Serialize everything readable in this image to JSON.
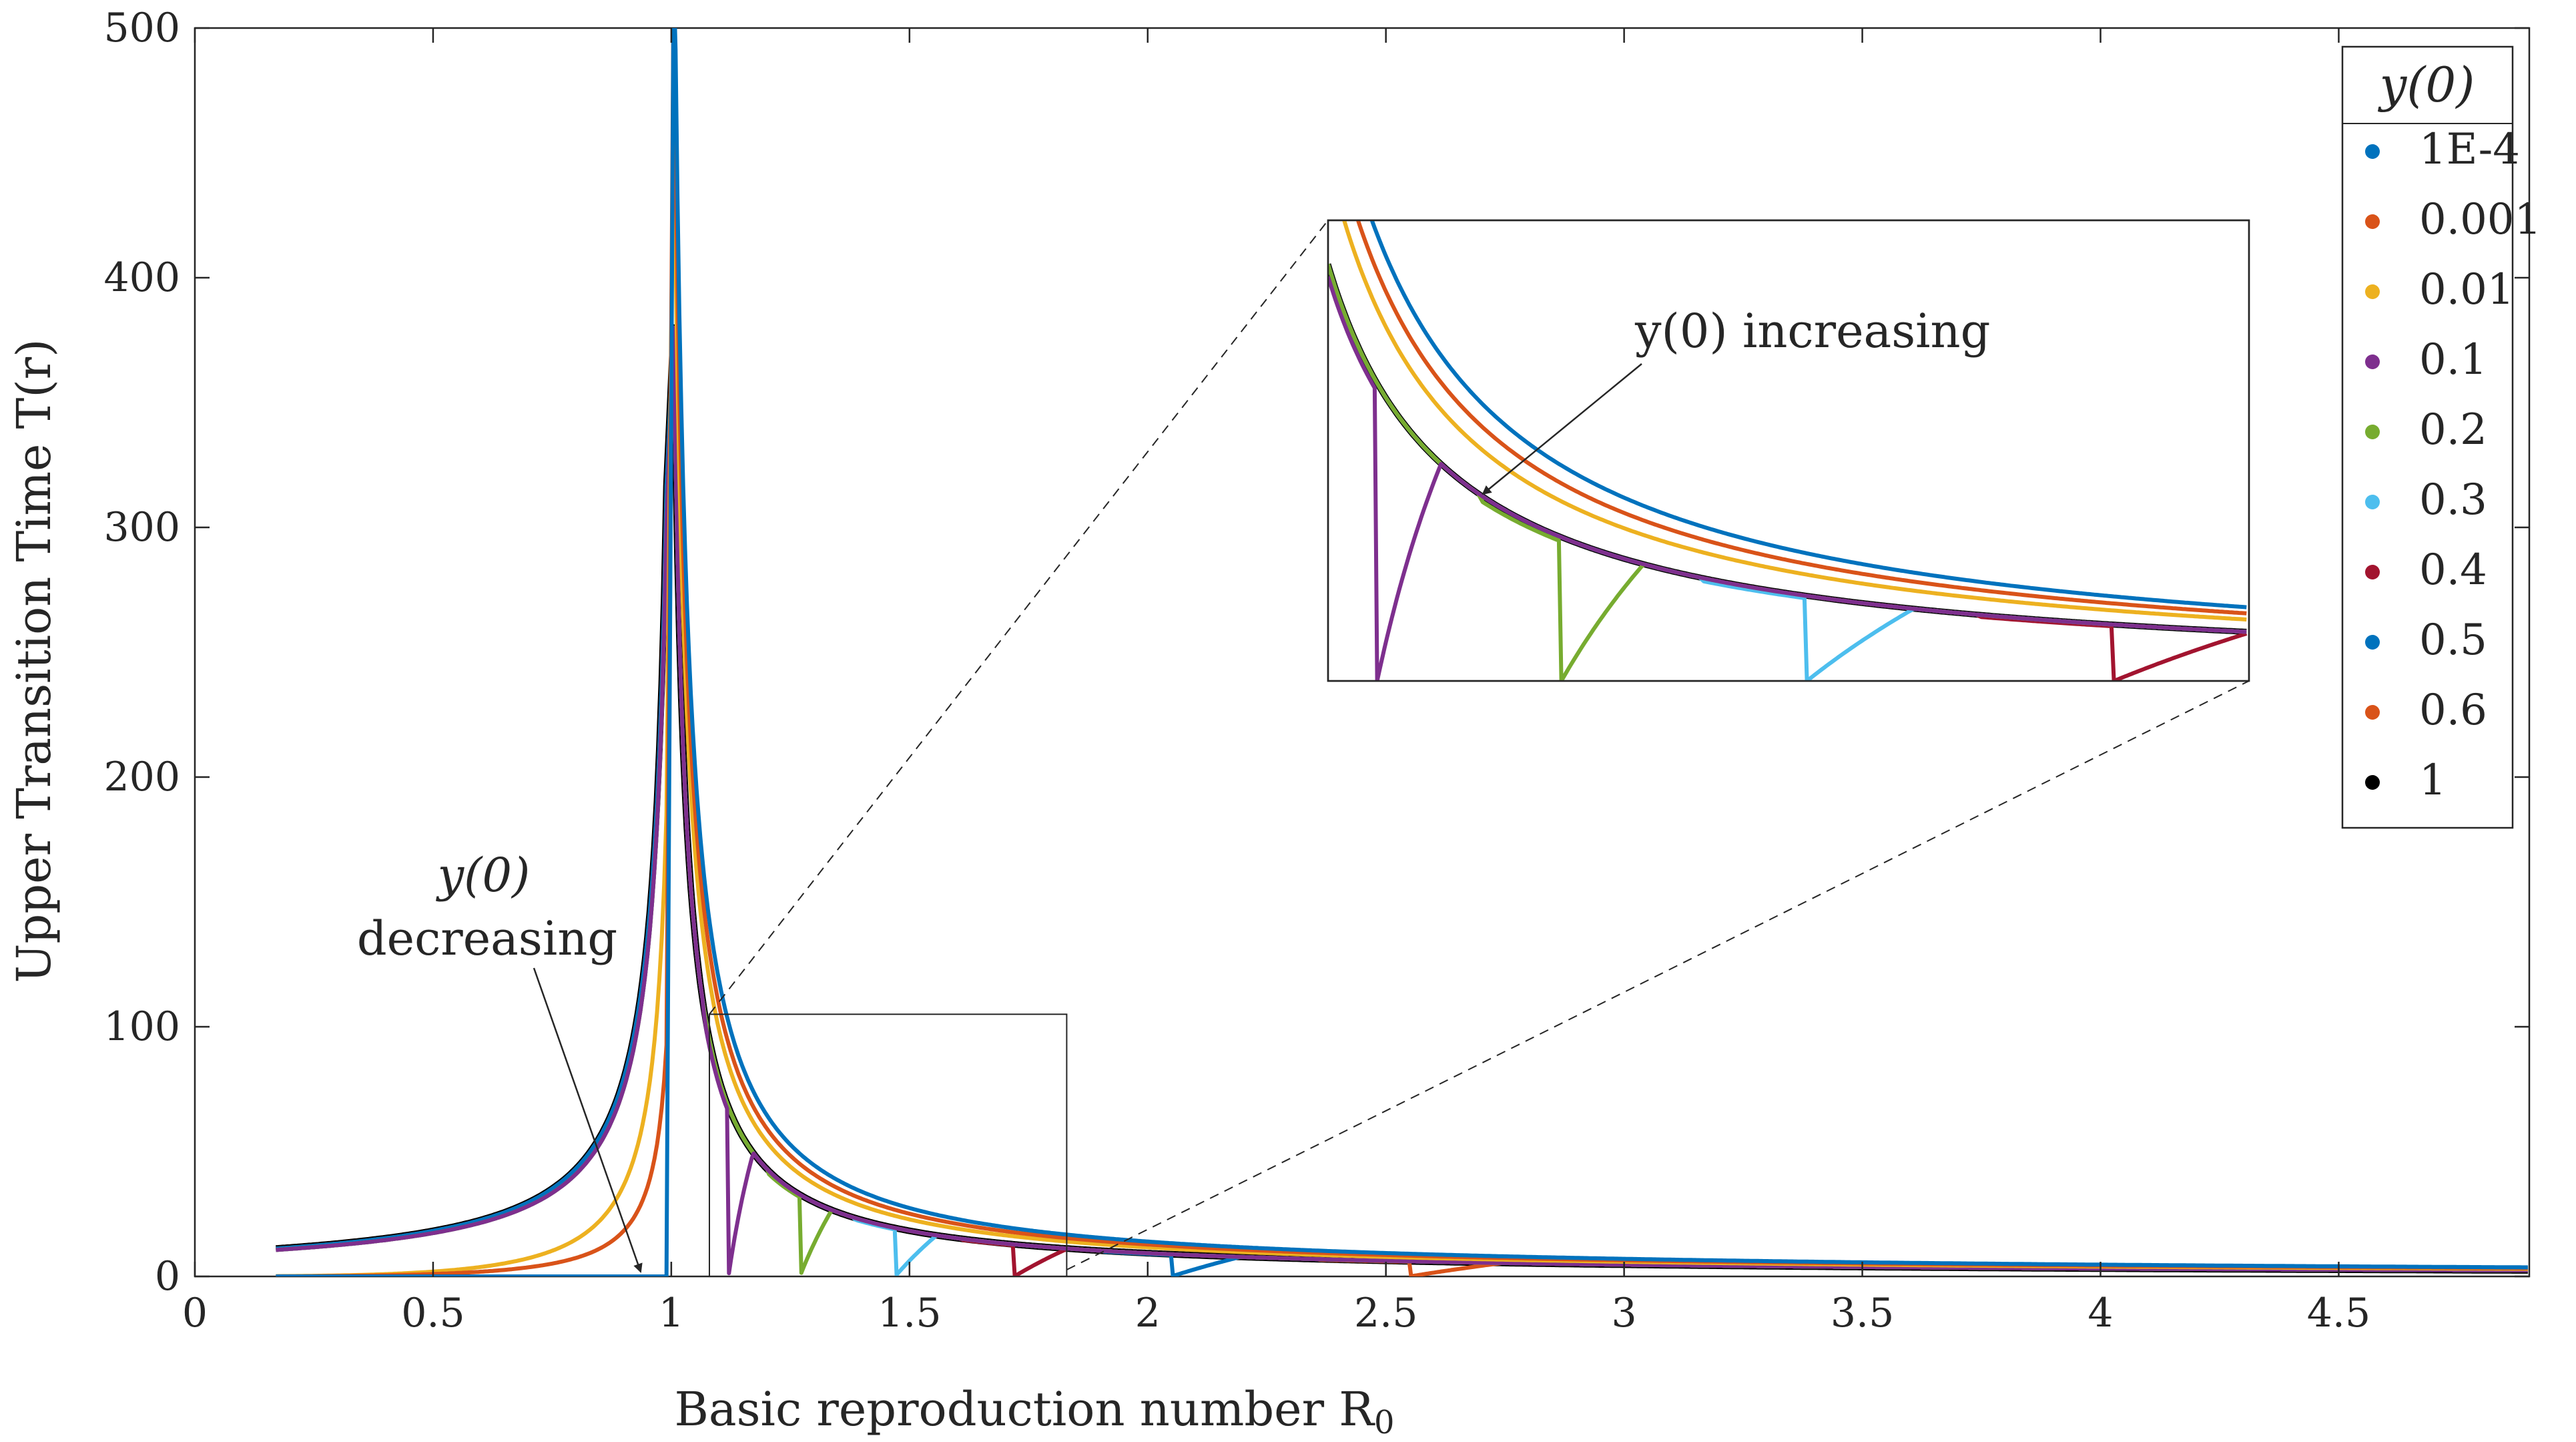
{
  "chart_data": {
    "type": "line",
    "title": "",
    "xlabel": "Basic reproduction number R",
    "xlabel_sub": "0",
    "ylabel": "Upper Transition Time T(r)",
    "xlim": [
      0,
      4.9
    ],
    "ylim": [
      0,
      500
    ],
    "xticks": [
      "0",
      "0.5",
      "1",
      "1.5",
      "2",
      "2.5",
      "3",
      "3.5",
      "4",
      "4.5"
    ],
    "yticks": [
      "0",
      "100",
      "200",
      "300",
      "400",
      "500"
    ],
    "grid": false,
    "legend": {
      "title": "y(0)",
      "placement": "top-right",
      "entries": [
        "1E-4",
        "0.001",
        "0.01",
        "0.1",
        "0.2",
        "0.3",
        "0.4",
        "0.5",
        "0.6",
        "1"
      ]
    },
    "series": [
      {
        "name": "1E-4",
        "color": "#0072BD",
        "y0": 0.0001
      },
      {
        "name": "0.001",
        "color": "#D95319",
        "y0": 0.001
      },
      {
        "name": "0.01",
        "color": "#EDB120",
        "y0": 0.01
      },
      {
        "name": "0.1",
        "color": "#7E2F8E",
        "y0": 0.1
      },
      {
        "name": "0.2",
        "color": "#77AC30",
        "y0": 0.2
      },
      {
        "name": "0.3",
        "color": "#4DBEEE",
        "y0": 0.3
      },
      {
        "name": "0.4",
        "color": "#A2142F",
        "y0": 0.4
      },
      {
        "name": "0.5",
        "color": "#0072BD",
        "y0": 0.5
      },
      {
        "name": "0.6",
        "color": "#D95319",
        "y0": 0.6
      },
      {
        "name": "1",
        "color": "#000000",
        "y0": 1
      }
    ],
    "sample_values": {
      "x": [
        0.2,
        0.5,
        0.8,
        0.95,
        1.1,
        1.5,
        2,
        3,
        4,
        4.9
      ],
      "series_y0_1": [
        9,
        13,
        35,
        140,
        95,
        14,
        9,
        5,
        4,
        3
      ],
      "series_y0_1E-4": [
        0,
        0,
        0,
        0,
        160,
        30,
        15,
        8,
        5.5,
        4.5
      ]
    },
    "zoom_box": {
      "xlim": [
        1.08,
        1.83
      ],
      "ylim": [
        0,
        105
      ]
    },
    "annotations": [
      {
        "id": "decreasing",
        "text_line1": "y(0)",
        "text_line2": "decreasing"
      },
      {
        "id": "increasing",
        "text": "y(0) increasing"
      }
    ]
  }
}
